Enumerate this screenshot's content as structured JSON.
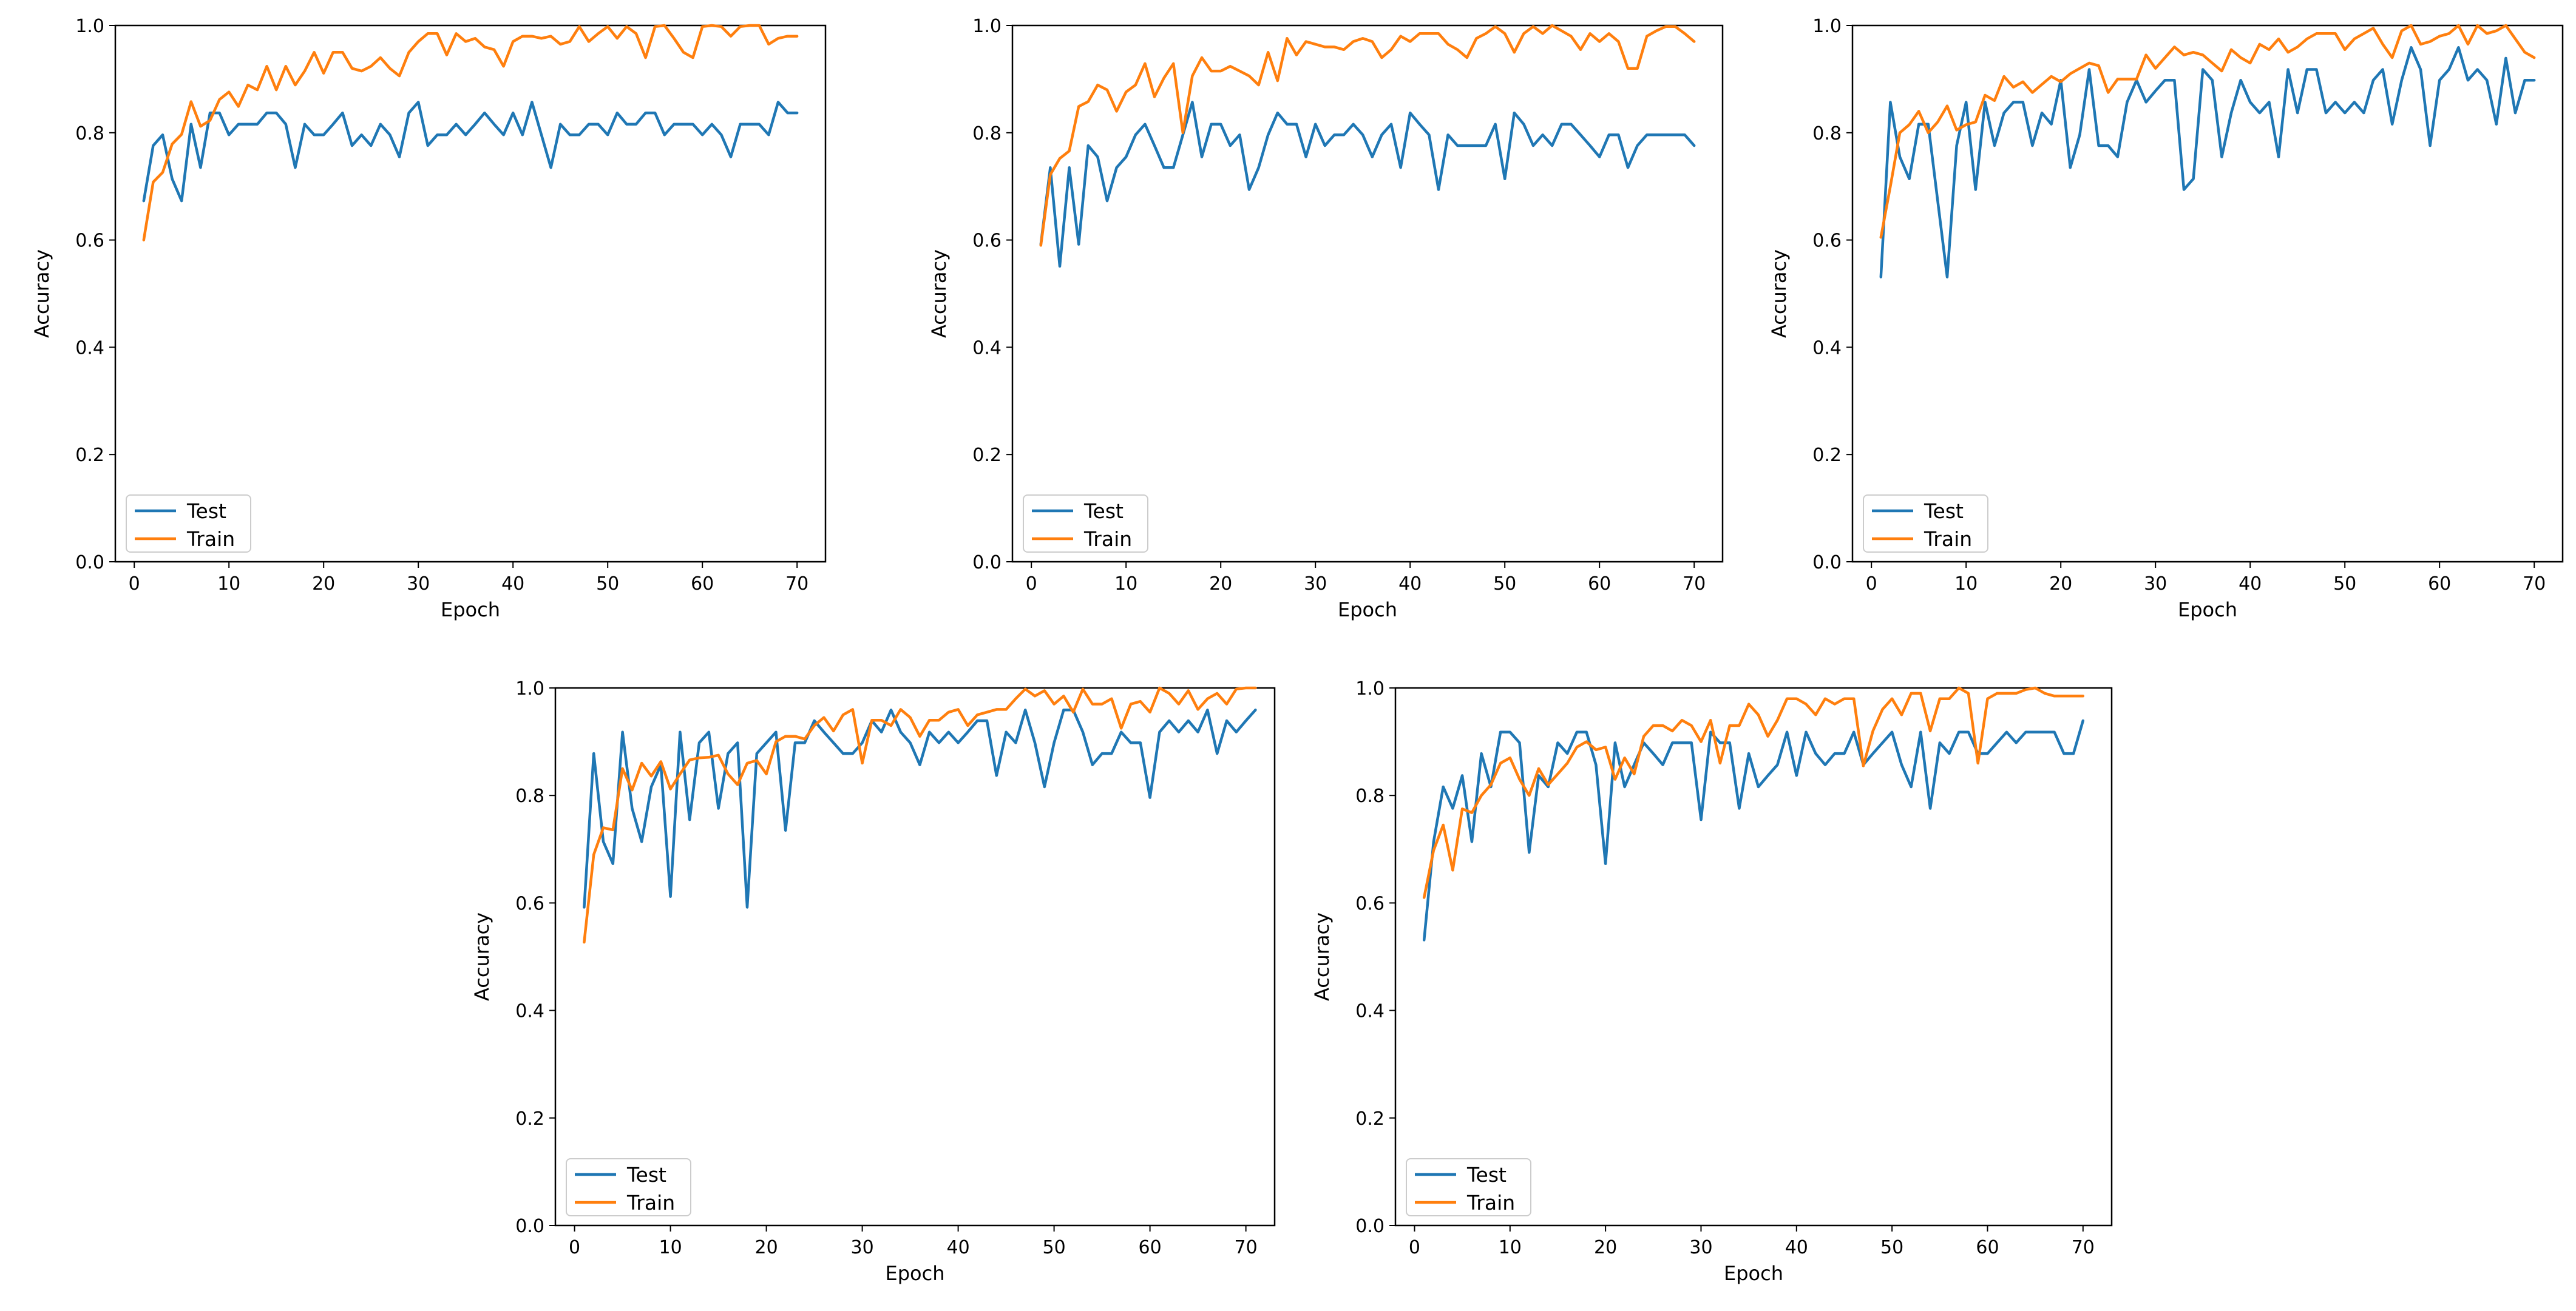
{
  "colors": {
    "test": "#1f77b4",
    "train": "#ff7f0e",
    "axes": "#000000",
    "legend_border": "#cccccc"
  },
  "chart_data": [
    {
      "type": "line",
      "title": "",
      "xlabel": "Epoch",
      "ylabel": "Accuracy",
      "xlim": [
        -2,
        73
      ],
      "ylim": [
        0.0,
        1.0
      ],
      "grid": false,
      "xticks": [
        0,
        10,
        20,
        30,
        40,
        50,
        60,
        70
      ],
      "yticks": [
        0.0,
        0.2,
        0.4,
        0.6,
        0.8,
        1.0
      ],
      "xtick_labels": [
        "0",
        "10",
        "20",
        "30",
        "40",
        "50",
        "60",
        "70"
      ],
      "ytick_labels": [
        "0.0",
        "0.2",
        "0.4",
        "0.6",
        "0.8",
        "1.0"
      ],
      "legend": {
        "position": "lower-left",
        "entries": [
          "Test",
          "Train"
        ]
      },
      "x_start": 1,
      "series": [
        {
          "name": "Test",
          "color_key": "test",
          "values": [
            0.673,
            0.776,
            0.796,
            0.714,
            0.673,
            0.816,
            0.735,
            0.837,
            0.837,
            0.796,
            0.816,
            0.816,
            0.816,
            0.837,
            0.837,
            0.816,
            0.735,
            0.816,
            0.796,
            0.796,
            0.816,
            0.837,
            0.776,
            0.796,
            0.776,
            0.816,
            0.796,
            0.755,
            0.837,
            0.857,
            0.776,
            0.796,
            0.796,
            0.816,
            0.796,
            0.816,
            0.837,
            0.816,
            0.796,
            0.837,
            0.796,
            0.857,
            0.796,
            0.735,
            0.816,
            0.796,
            0.796,
            0.816,
            0.816,
            0.796,
            0.837,
            0.816,
            0.816,
            0.837,
            0.837,
            0.796,
            0.816,
            0.816,
            0.816,
            0.796,
            0.816,
            0.796,
            0.755,
            0.816,
            0.816,
            0.816,
            0.796,
            0.857,
            0.837,
            0.837
          ]
        },
        {
          "name": "Train",
          "color_key": "train",
          "values": [
            0.6,
            0.708,
            0.726,
            0.779,
            0.797,
            0.858,
            0.812,
            0.823,
            0.862,
            0.876,
            0.849,
            0.889,
            0.88,
            0.924,
            0.88,
            0.924,
            0.889,
            0.915,
            0.95,
            0.911,
            0.95,
            0.95,
            0.92,
            0.915,
            0.924,
            0.94,
            0.92,
            0.906,
            0.95,
            0.97,
            0.985,
            0.985,
            0.945,
            0.985,
            0.97,
            0.976,
            0.96,
            0.955,
            0.924,
            0.97,
            0.98,
            0.98,
            0.976,
            0.98,
            0.965,
            0.97,
            0.998,
            0.97,
            0.985,
            0.998,
            0.976,
            0.998,
            0.985,
            0.94,
            0.998,
            1.0,
            0.976,
            0.95,
            0.94,
            0.998,
            1.0,
            0.998,
            0.98,
            0.998,
            1.0,
            1.0,
            0.965,
            0.976,
            0.98,
            0.98
          ]
        }
      ]
    },
    {
      "type": "line",
      "title": "",
      "xlabel": "Epoch",
      "ylabel": "Accuracy",
      "xlim": [
        -2,
        73
      ],
      "ylim": [
        0.0,
        1.0
      ],
      "grid": false,
      "xticks": [
        0,
        10,
        20,
        30,
        40,
        50,
        60,
        70
      ],
      "yticks": [
        0.0,
        0.2,
        0.4,
        0.6,
        0.8,
        1.0
      ],
      "xtick_labels": [
        "0",
        "10",
        "20",
        "30",
        "40",
        "50",
        "60",
        "70"
      ],
      "ytick_labels": [
        "0.0",
        "0.2",
        "0.4",
        "0.6",
        "0.8",
        "1.0"
      ],
      "legend": {
        "position": "lower-left",
        "entries": [
          "Test",
          "Train"
        ]
      },
      "x_start": 1,
      "series": [
        {
          "name": "Test",
          "color_key": "test",
          "values": [
            0.592,
            0.735,
            0.551,
            0.735,
            0.592,
            0.776,
            0.755,
            0.673,
            0.735,
            0.755,
            0.796,
            0.816,
            0.776,
            0.735,
            0.735,
            0.796,
            0.857,
            0.755,
            0.816,
            0.816,
            0.776,
            0.796,
            0.694,
            0.735,
            0.796,
            0.837,
            0.816,
            0.816,
            0.755,
            0.816,
            0.776,
            0.796,
            0.796,
            0.816,
            0.796,
            0.755,
            0.796,
            0.816,
            0.735,
            0.837,
            0.816,
            0.796,
            0.694,
            0.796,
            0.776,
            0.776,
            0.776,
            0.776,
            0.816,
            0.714,
            0.837,
            0.816,
            0.776,
            0.796,
            0.776,
            0.816,
            0.816,
            0.796,
            0.776,
            0.755,
            0.796,
            0.796,
            0.735,
            0.776,
            0.796,
            0.796,
            0.796,
            0.796,
            0.796,
            0.776
          ]
        },
        {
          "name": "Train",
          "color_key": "train",
          "values": [
            0.59,
            0.722,
            0.752,
            0.766,
            0.849,
            0.858,
            0.889,
            0.88,
            0.84,
            0.876,
            0.889,
            0.929,
            0.867,
            0.902,
            0.929,
            0.8,
            0.906,
            0.94,
            0.915,
            0.915,
            0.924,
            0.915,
            0.906,
            0.889,
            0.95,
            0.897,
            0.976,
            0.945,
            0.97,
            0.965,
            0.96,
            0.96,
            0.955,
            0.97,
            0.976,
            0.97,
            0.94,
            0.955,
            0.98,
            0.97,
            0.985,
            0.985,
            0.985,
            0.965,
            0.955,
            0.94,
            0.976,
            0.985,
            0.998,
            0.985,
            0.95,
            0.985,
            0.998,
            0.985,
            1.0,
            0.99,
            0.98,
            0.955,
            0.985,
            0.97,
            0.985,
            0.97,
            0.92,
            0.92,
            0.98,
            0.99,
            0.998,
            0.998,
            0.985,
            0.97
          ]
        }
      ]
    },
    {
      "type": "line",
      "title": "",
      "xlabel": "Epoch",
      "ylabel": "Accuracy",
      "xlim": [
        -2,
        73
      ],
      "ylim": [
        0.0,
        1.0
      ],
      "grid": false,
      "xticks": [
        0,
        10,
        20,
        30,
        40,
        50,
        60,
        70
      ],
      "yticks": [
        0.0,
        0.2,
        0.4,
        0.6,
        0.8,
        1.0
      ],
      "xtick_labels": [
        "0",
        "10",
        "20",
        "30",
        "40",
        "50",
        "60",
        "70"
      ],
      "ytick_labels": [
        "0.0",
        "0.2",
        "0.4",
        "0.6",
        "0.8",
        "1.0"
      ],
      "legend": {
        "position": "lower-left",
        "entries": [
          "Test",
          "Train"
        ]
      },
      "x_start": 1,
      "series": [
        {
          "name": "Test",
          "color_key": "test",
          "values": [
            0.531,
            0.857,
            0.755,
            0.714,
            0.816,
            0.816,
            0.673,
            0.531,
            0.776,
            0.857,
            0.694,
            0.857,
            0.776,
            0.837,
            0.857,
            0.857,
            0.776,
            0.837,
            0.816,
            0.898,
            0.735,
            0.796,
            0.918,
            0.776,
            0.776,
            0.755,
            0.857,
            0.898,
            0.857,
            0.878,
            0.898,
            0.898,
            0.694,
            0.714,
            0.918,
            0.898,
            0.755,
            0.837,
            0.898,
            0.857,
            0.837,
            0.857,
            0.755,
            0.918,
            0.837,
            0.918,
            0.918,
            0.837,
            0.857,
            0.837,
            0.857,
            0.837,
            0.898,
            0.918,
            0.816,
            0.898,
            0.959,
            0.918,
            0.776,
            0.898,
            0.918,
            0.959,
            0.898,
            0.918,
            0.898,
            0.816,
            0.939,
            0.837,
            0.898,
            0.898
          ]
        },
        {
          "name": "Train",
          "color_key": "train",
          "values": [
            0.605,
            0.7,
            0.8,
            0.815,
            0.84,
            0.8,
            0.82,
            0.85,
            0.805,
            0.815,
            0.82,
            0.87,
            0.86,
            0.905,
            0.885,
            0.895,
            0.875,
            0.89,
            0.905,
            0.895,
            0.91,
            0.92,
            0.93,
            0.925,
            0.875,
            0.9,
            0.9,
            0.9,
            0.945,
            0.92,
            0.94,
            0.96,
            0.945,
            0.95,
            0.945,
            0.93,
            0.915,
            0.955,
            0.94,
            0.93,
            0.965,
            0.955,
            0.975,
            0.95,
            0.96,
            0.975,
            0.985,
            0.985,
            0.985,
            0.955,
            0.975,
            0.985,
            0.995,
            0.965,
            0.94,
            0.99,
            1.0,
            0.965,
            0.97,
            0.98,
            0.985,
            1.0,
            0.965,
            1.0,
            0.985,
            0.99,
            1.0,
            0.975,
            0.95,
            0.94
          ]
        }
      ]
    },
    {
      "type": "line",
      "title": "",
      "xlabel": "Epoch",
      "ylabel": "Accuracy",
      "xlim": [
        -2,
        73
      ],
      "ylim": [
        0.0,
        1.0
      ],
      "grid": false,
      "xticks": [
        0,
        10,
        20,
        30,
        40,
        50,
        60,
        70
      ],
      "yticks": [
        0.0,
        0.2,
        0.4,
        0.6,
        0.8,
        1.0
      ],
      "xtick_labels": [
        "0",
        "10",
        "20",
        "30",
        "40",
        "50",
        "60",
        "70"
      ],
      "ytick_labels": [
        "0.0",
        "0.2",
        "0.4",
        "0.6",
        "0.8",
        "1.0"
      ],
      "legend": {
        "position": "lower-left",
        "entries": [
          "Test",
          "Train"
        ]
      },
      "x_start": 1,
      "series": [
        {
          "name": "Test",
          "color_key": "test",
          "values": [
            0.592,
            0.878,
            0.714,
            0.673,
            0.918,
            0.776,
            0.714,
            0.816,
            0.857,
            0.612,
            0.918,
            0.755,
            0.898,
            0.918,
            0.776,
            0.878,
            0.898,
            0.592,
            0.878,
            0.898,
            0.918,
            0.735,
            0.898,
            0.898,
            0.939,
            0.918,
            0.898,
            0.878,
            0.878,
            0.898,
            0.939,
            0.918,
            0.959,
            0.918,
            0.898,
            0.857,
            0.918,
            0.898,
            0.918,
            0.898,
            0.918,
            0.939,
            0.939,
            0.837,
            0.918,
            0.898,
            0.959,
            0.898,
            0.816,
            0.898,
            0.959,
            0.959,
            0.918,
            0.857,
            0.878,
            0.878,
            0.918,
            0.898,
            0.898,
            0.796,
            0.918,
            0.939,
            0.918,
            0.939,
            0.918,
            0.959,
            0.878,
            0.939,
            0.918,
            0.939,
            0.959
          ]
        },
        {
          "name": "Train",
          "color_key": "train",
          "values": [
            0.527,
            0.69,
            0.74,
            0.736,
            0.85,
            0.81,
            0.86,
            0.836,
            0.863,
            0.812,
            0.84,
            0.866,
            0.87,
            0.871,
            0.875,
            0.84,
            0.82,
            0.86,
            0.865,
            0.84,
            0.9,
            0.91,
            0.91,
            0.905,
            0.93,
            0.945,
            0.92,
            0.95,
            0.96,
            0.86,
            0.94,
            0.94,
            0.93,
            0.96,
            0.945,
            0.91,
            0.94,
            0.94,
            0.955,
            0.96,
            0.93,
            0.95,
            0.955,
            0.96,
            0.96,
            0.98,
            0.998,
            0.985,
            0.995,
            0.97,
            0.985,
            0.955,
            0.998,
            0.97,
            0.97,
            0.98,
            0.925,
            0.97,
            0.975,
            0.955,
            1.0,
            0.99,
            0.97,
            0.995,
            0.96,
            0.98,
            0.99,
            0.97,
            0.998,
            1.0,
            1.0
          ]
        }
      ]
    },
    {
      "type": "line",
      "title": "",
      "xlabel": "Epoch",
      "ylabel": "Accuracy",
      "xlim": [
        -2,
        73
      ],
      "ylim": [
        0.0,
        1.0
      ],
      "grid": false,
      "xticks": [
        0,
        10,
        20,
        30,
        40,
        50,
        60,
        70
      ],
      "yticks": [
        0.0,
        0.2,
        0.4,
        0.6,
        0.8,
        1.0
      ],
      "xtick_labels": [
        "0",
        "10",
        "20",
        "30",
        "40",
        "50",
        "60",
        "70"
      ],
      "ytick_labels": [
        "0.0",
        "0.2",
        "0.4",
        "0.6",
        "0.8",
        "1.0"
      ],
      "legend": {
        "position": "lower-left",
        "entries": [
          "Test",
          "Train"
        ]
      },
      "x_start": 1,
      "series": [
        {
          "name": "Test",
          "color_key": "test",
          "values": [
            0.531,
            0.714,
            0.816,
            0.776,
            0.837,
            0.714,
            0.878,
            0.816,
            0.918,
            0.918,
            0.898,
            0.694,
            0.837,
            0.816,
            0.898,
            0.878,
            0.918,
            0.918,
            0.857,
            0.673,
            0.898,
            0.816,
            0.857,
            0.898,
            0.878,
            0.857,
            0.898,
            0.898,
            0.898,
            0.755,
            0.918,
            0.898,
            0.898,
            0.776,
            0.878,
            0.816,
            0.837,
            0.857,
            0.918,
            0.837,
            0.918,
            0.878,
            0.857,
            0.878,
            0.878,
            0.918,
            0.857,
            0.878,
            0.898,
            0.918,
            0.857,
            0.816,
            0.918,
            0.776,
            0.898,
            0.878,
            0.918,
            0.918,
            0.878,
            0.878,
            0.898,
            0.918,
            0.898,
            0.918,
            0.918,
            0.918,
            0.918,
            0.878,
            0.878,
            0.939
          ]
        },
        {
          "name": "Train",
          "color_key": "train",
          "values": [
            0.61,
            0.698,
            0.745,
            0.661,
            0.775,
            0.768,
            0.8,
            0.82,
            0.86,
            0.87,
            0.83,
            0.8,
            0.85,
            0.82,
            0.84,
            0.86,
            0.89,
            0.9,
            0.885,
            0.89,
            0.83,
            0.87,
            0.84,
            0.91,
            0.93,
            0.93,
            0.92,
            0.94,
            0.93,
            0.9,
            0.94,
            0.86,
            0.93,
            0.93,
            0.97,
            0.95,
            0.91,
            0.94,
            0.98,
            0.98,
            0.97,
            0.95,
            0.98,
            0.97,
            0.98,
            0.98,
            0.855,
            0.92,
            0.96,
            0.98,
            0.95,
            0.99,
            0.99,
            0.92,
            0.98,
            0.98,
            1.0,
            0.99,
            0.86,
            0.98,
            0.99,
            0.99,
            0.99,
            0.997,
            1.0,
            0.99,
            0.985,
            0.985,
            0.985,
            0.985
          ]
        }
      ]
    }
  ]
}
